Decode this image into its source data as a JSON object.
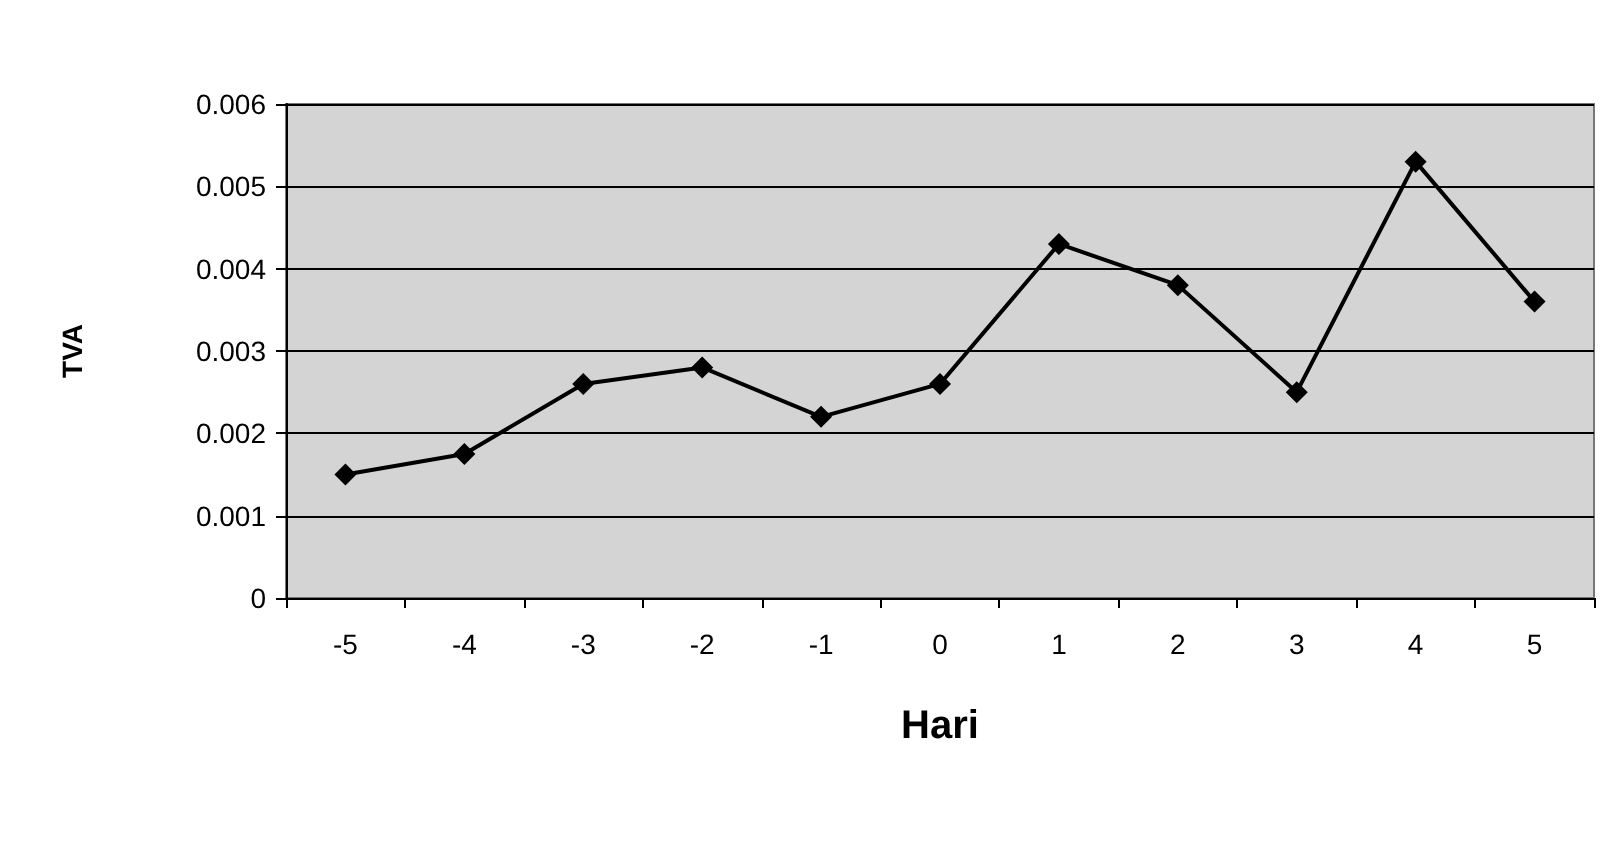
{
  "chart_data": {
    "type": "line",
    "xlabel": "Hari",
    "ylabel": "TVA",
    "categories": [
      "-5",
      "-4",
      "-3",
      "-2",
      "-1",
      "0",
      "1",
      "2",
      "3",
      "4",
      "5"
    ],
    "series": [
      {
        "color": "#000000",
        "values": [
          0.0015,
          0.00175,
          0.0026,
          0.0028,
          0.0022,
          0.0026,
          0.0043,
          0.0038,
          0.0025,
          0.0053,
          0.0036
        ]
      }
    ],
    "ylim": [
      0,
      0.006
    ],
    "yticks": [
      0,
      0.001,
      0.002,
      0.003,
      0.004,
      0.005,
      0.006
    ],
    "grid": "y",
    "marker": "diamond",
    "line_style": "solid"
  }
}
